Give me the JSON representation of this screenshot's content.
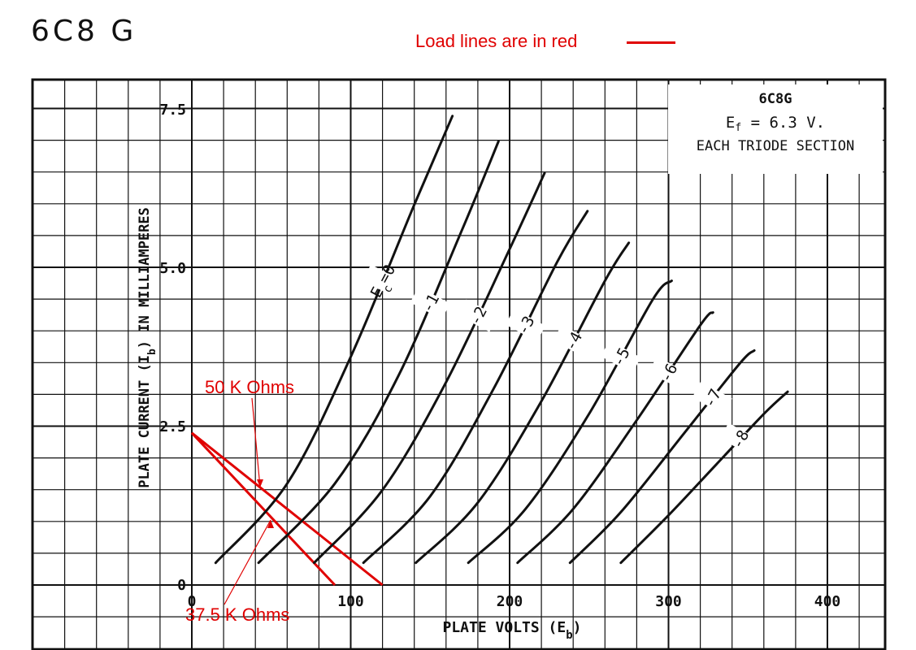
{
  "page": {
    "title": "6C8 G",
    "legend_note": "Load lines are in red",
    "colors": {
      "curve": "#111111",
      "grid": "#111111",
      "load_line": "#e00000"
    }
  },
  "info_box": {
    "tube": "6C8G",
    "filament_prefix": "E",
    "filament_sub": "f",
    "filament_suffix": " = 6.3 V.",
    "section": "EACH TRIODE SECTION"
  },
  "chart_data": {
    "type": "line",
    "title": "6C8G",
    "xlabel": "PLATE VOLTS (Eb)",
    "ylabel": "PLATE CURRENT (Ib) IN MILLIAMPERES",
    "xlim": [
      0,
      400
    ],
    "ylim": [
      0,
      7.5
    ],
    "x_ticks": [
      "0",
      "100",
      "200",
      "300",
      "400"
    ],
    "y_ticks": [
      "0",
      "2.5",
      "5.0",
      "7.5"
    ],
    "grid": true,
    "curve_label_prefix": "E",
    "curve_label_sub": "c",
    "series": [
      {
        "name": "0",
        "label": "Ec=0",
        "x": [
          15,
          60,
          100,
          140,
          164
        ],
        "y": [
          0.35,
          1.6,
          3.6,
          6.0,
          7.4
        ]
      },
      {
        "name": "-1",
        "label": "-1",
        "x": [
          42,
          90,
          130,
          170,
          193
        ],
        "y": [
          0.35,
          1.6,
          3.3,
          5.6,
          7.0
        ]
      },
      {
        "name": "-2",
        "label": "-2",
        "x": [
          77,
          120,
          160,
          200,
          222
        ],
        "y": [
          0.35,
          1.5,
          3.2,
          5.3,
          6.5
        ]
      },
      {
        "name": "-3",
        "label": "-3",
        "x": [
          108,
          150,
          190,
          230,
          249
        ],
        "y": [
          0.35,
          1.4,
          3.1,
          5.1,
          5.9
        ]
      },
      {
        "name": "-4",
        "label": "-4",
        "x": [
          141,
          180,
          220,
          260,
          275
        ],
        "y": [
          0.35,
          1.3,
          2.9,
          4.8,
          5.4
        ]
      },
      {
        "name": "-5",
        "label": "-5",
        "x": [
          174,
          210,
          250,
          290,
          302
        ],
        "y": [
          0.35,
          1.2,
          2.7,
          4.5,
          4.8
        ]
      },
      {
        "name": "-6",
        "label": "-6",
        "x": [
          205,
          240,
          280,
          320,
          328
        ],
        "y": [
          0.35,
          1.2,
          2.6,
          4.1,
          4.3
        ]
      },
      {
        "name": "-7",
        "label": "-7",
        "x": [
          238,
          270,
          310,
          345,
          354
        ],
        "y": [
          0.35,
          1.15,
          2.4,
          3.5,
          3.7
        ]
      },
      {
        "name": "-8",
        "label": "-8",
        "x": [
          270,
          300,
          330,
          360,
          375
        ],
        "y": [
          0.35,
          1.1,
          1.9,
          2.7,
          3.05
        ]
      }
    ],
    "load_lines": [
      {
        "name": "50 K Ohms",
        "x": [
          0,
          120
        ],
        "y": [
          2.4,
          0
        ]
      },
      {
        "name": "37.5 K Ohms",
        "x": [
          0,
          90
        ],
        "y": [
          2.4,
          0
        ]
      }
    ]
  }
}
